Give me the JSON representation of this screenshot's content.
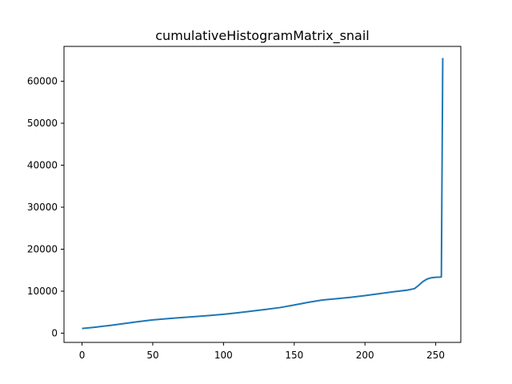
{
  "chart_data": {
    "type": "line",
    "title": "cumulativeHistogramMatrix_snail",
    "xlabel": "",
    "ylabel": "",
    "xlim": [
      -12.75,
      267.75
    ],
    "ylim": [
      -2200,
      68300
    ],
    "x_ticks": [
      0,
      50,
      100,
      150,
      200,
      250
    ],
    "y_ticks": [
      0,
      10000,
      20000,
      30000,
      40000,
      50000,
      60000
    ],
    "x_tick_labels": [
      "0",
      "50",
      "100",
      "150",
      "200",
      "250"
    ],
    "y_tick_labels": [
      "0",
      "10000",
      "20000",
      "30000",
      "40000",
      "50000",
      "60000"
    ],
    "grid": false,
    "legend": "none",
    "line_color": "#1f77b4",
    "series": [
      {
        "x": [
          0,
          10,
          20,
          30,
          40,
          50,
          60,
          70,
          80,
          90,
          100,
          110,
          120,
          130,
          140,
          150,
          160,
          170,
          180,
          190,
          200,
          210,
          220,
          230,
          235,
          238,
          241,
          244,
          247,
          250,
          253,
          254,
          255
        ],
        "values": [
          1100,
          1450,
          1850,
          2300,
          2750,
          3150,
          3450,
          3700,
          3950,
          4200,
          4500,
          4850,
          5250,
          5650,
          6100,
          6700,
          7350,
          7900,
          8200,
          8550,
          8950,
          9400,
          9850,
          10250,
          10600,
          11400,
          12300,
          12900,
          13200,
          13300,
          13350,
          13400,
          65536
        ]
      }
    ]
  }
}
